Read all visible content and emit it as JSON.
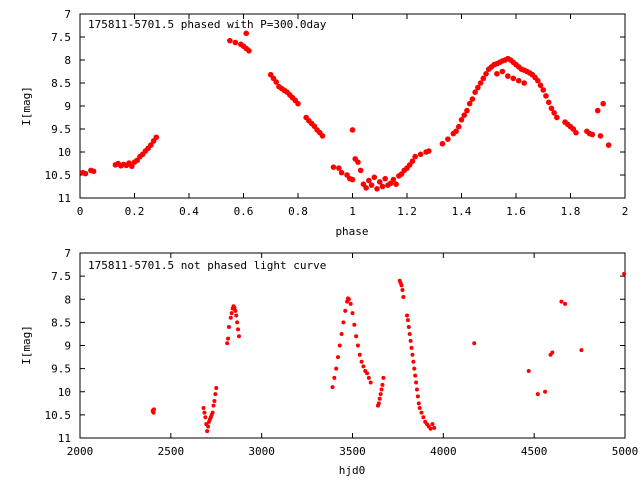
{
  "chart_data": [
    {
      "type": "scatter",
      "title": "175811-5701.5 phased with P=300.0day",
      "xlabel": "phase",
      "ylabel": "I[mag]",
      "xlim": [
        0,
        2
      ],
      "ylim": [
        11,
        7
      ],
      "y_inverted": true,
      "xticks": [
        0,
        0.2,
        0.4,
        0.6,
        0.8,
        1,
        1.2,
        1.4,
        1.6,
        1.8,
        2
      ],
      "xtick_labels": [
        "0",
        "0.2",
        "0.4",
        "0.6",
        "0.8",
        "1",
        "1.2",
        "1.4",
        "1.6",
        "1.8",
        "2"
      ],
      "yticks": [
        7,
        7.5,
        8,
        8.5,
        9,
        9.5,
        10,
        10.5,
        11
      ],
      "ytick_labels": [
        "7",
        "7.5",
        "8",
        "8.5",
        "9",
        "9.5",
        "10",
        "10.5",
        "11"
      ],
      "grid": false,
      "marker_color": "#ff0000",
      "points": [
        [
          0.01,
          10.45
        ],
        [
          0.02,
          10.47
        ],
        [
          0.04,
          10.4
        ],
        [
          0.05,
          10.42
        ],
        [
          0.13,
          10.28
        ],
        [
          0.14,
          10.25
        ],
        [
          0.15,
          10.3
        ],
        [
          0.16,
          10.27
        ],
        [
          0.17,
          10.29
        ],
        [
          0.18,
          10.24
        ],
        [
          0.19,
          10.31
        ],
        [
          0.2,
          10.22
        ],
        [
          0.21,
          10.18
        ],
        [
          0.22,
          10.1
        ],
        [
          0.23,
          10.05
        ],
        [
          0.24,
          9.98
        ],
        [
          0.25,
          9.92
        ],
        [
          0.26,
          9.85
        ],
        [
          0.27,
          9.76
        ],
        [
          0.28,
          9.68
        ],
        [
          0.55,
          7.58
        ],
        [
          0.57,
          7.62
        ],
        [
          0.59,
          7.66
        ],
        [
          0.6,
          7.7
        ],
        [
          0.61,
          7.75
        ],
        [
          0.62,
          7.8
        ],
        [
          0.61,
          7.42
        ],
        [
          0.7,
          8.32
        ],
        [
          0.71,
          8.4
        ],
        [
          0.72,
          8.48
        ],
        [
          0.73,
          8.58
        ],
        [
          0.74,
          8.62
        ],
        [
          0.75,
          8.66
        ],
        [
          0.76,
          8.7
        ],
        [
          0.77,
          8.76
        ],
        [
          0.78,
          8.82
        ],
        [
          0.79,
          8.88
        ],
        [
          0.8,
          8.95
        ],
        [
          0.83,
          9.25
        ],
        [
          0.84,
          9.32
        ],
        [
          0.85,
          9.38
        ],
        [
          0.86,
          9.44
        ],
        [
          0.87,
          9.52
        ],
        [
          0.88,
          9.58
        ],
        [
          0.89,
          9.65
        ],
        [
          0.93,
          10.33
        ],
        [
          0.95,
          10.35
        ],
        [
          0.96,
          10.45
        ],
        [
          0.98,
          10.5
        ],
        [
          0.99,
          10.58
        ],
        [
          1.0,
          10.6
        ],
        [
          1.0,
          9.52
        ],
        [
          1.01,
          10.15
        ],
        [
          1.02,
          10.22
        ],
        [
          1.03,
          10.4
        ],
        [
          1.04,
          10.7
        ],
        [
          1.05,
          10.78
        ],
        [
          1.06,
          10.62
        ],
        [
          1.07,
          10.72
        ],
        [
          1.08,
          10.55
        ],
        [
          1.09,
          10.8
        ],
        [
          1.1,
          10.65
        ],
        [
          1.11,
          10.75
        ],
        [
          1.12,
          10.58
        ],
        [
          1.13,
          10.72
        ],
        [
          1.14,
          10.68
        ],
        [
          1.15,
          10.6
        ],
        [
          1.16,
          10.7
        ],
        [
          1.17,
          10.52
        ],
        [
          1.18,
          10.48
        ],
        [
          1.19,
          10.4
        ],
        [
          1.2,
          10.35
        ],
        [
          1.21,
          10.28
        ],
        [
          1.22,
          10.2
        ],
        [
          1.23,
          10.1
        ],
        [
          1.25,
          10.05
        ],
        [
          1.27,
          10.0
        ],
        [
          1.28,
          9.98
        ],
        [
          1.33,
          9.82
        ],
        [
          1.35,
          9.72
        ],
        [
          1.37,
          9.6
        ],
        [
          1.38,
          9.55
        ],
        [
          1.39,
          9.45
        ],
        [
          1.4,
          9.3
        ],
        [
          1.41,
          9.2
        ],
        [
          1.42,
          9.1
        ],
        [
          1.43,
          8.95
        ],
        [
          1.44,
          8.85
        ],
        [
          1.45,
          8.7
        ],
        [
          1.46,
          8.6
        ],
        [
          1.47,
          8.5
        ],
        [
          1.48,
          8.4
        ],
        [
          1.49,
          8.3
        ],
        [
          1.5,
          8.2
        ],
        [
          1.51,
          8.15
        ],
        [
          1.52,
          8.1
        ],
        [
          1.53,
          8.08
        ],
        [
          1.54,
          8.05
        ],
        [
          1.55,
          8.02
        ],
        [
          1.56,
          8.0
        ],
        [
          1.57,
          7.97
        ],
        [
          1.58,
          8.0
        ],
        [
          1.59,
          8.05
        ],
        [
          1.6,
          8.1
        ],
        [
          1.61,
          8.15
        ],
        [
          1.62,
          8.2
        ],
        [
          1.63,
          8.22
        ],
        [
          1.64,
          8.25
        ],
        [
          1.65,
          8.28
        ],
        [
          1.66,
          8.32
        ],
        [
          1.67,
          8.38
        ],
        [
          1.68,
          8.45
        ],
        [
          1.69,
          8.55
        ],
        [
          1.7,
          8.65
        ],
        [
          1.71,
          8.78
        ],
        [
          1.72,
          8.92
        ],
        [
          1.73,
          9.05
        ],
        [
          1.74,
          9.15
        ],
        [
          1.75,
          9.25
        ],
        [
          1.53,
          8.3
        ],
        [
          1.55,
          8.25
        ],
        [
          1.57,
          8.35
        ],
        [
          1.59,
          8.4
        ],
        [
          1.61,
          8.45
        ],
        [
          1.63,
          8.5
        ],
        [
          1.78,
          9.35
        ],
        [
          1.79,
          9.4
        ],
        [
          1.8,
          9.45
        ],
        [
          1.81,
          9.5
        ],
        [
          1.82,
          9.58
        ],
        [
          1.86,
          9.55
        ],
        [
          1.87,
          9.6
        ],
        [
          1.88,
          9.62
        ],
        [
          1.9,
          9.1
        ],
        [
          1.91,
          9.65
        ],
        [
          1.92,
          8.95
        ],
        [
          1.94,
          9.85
        ]
      ]
    },
    {
      "type": "scatter",
      "title": "175811-5701.5 not phased light curve",
      "xlabel": "hjd0",
      "ylabel": "I[mag]",
      "xlim": [
        2000,
        5000
      ],
      "ylim": [
        11,
        7
      ],
      "y_inverted": true,
      "xticks": [
        2000,
        2500,
        3000,
        3500,
        4000,
        4500,
        5000
      ],
      "xtick_labels": [
        "2000",
        "2500",
        "3000",
        "3500",
        "4000",
        "4500",
        "5000"
      ],
      "yticks": [
        7,
        7.5,
        8,
        8.5,
        9,
        9.5,
        10,
        10.5,
        11
      ],
      "ytick_labels": [
        "7",
        "7.5",
        "8",
        "8.5",
        "9",
        "9.5",
        "10",
        "10.5",
        "11"
      ],
      "grid": false,
      "marker_color": "#ff0000",
      "points": [
        [
          2400,
          10.42
        ],
        [
          2402,
          10.4
        ],
        [
          2405,
          10.45
        ],
        [
          2407,
          10.38
        ],
        [
          2680,
          10.35
        ],
        [
          2685,
          10.45
        ],
        [
          2690,
          10.55
        ],
        [
          2695,
          10.7
        ],
        [
          2700,
          10.85
        ],
        [
          2705,
          10.75
        ],
        [
          2710,
          10.65
        ],
        [
          2715,
          10.6
        ],
        [
          2720,
          10.55
        ],
        [
          2725,
          10.5
        ],
        [
          2730,
          10.45
        ],
        [
          2735,
          10.3
        ],
        [
          2740,
          10.2
        ],
        [
          2745,
          10.05
        ],
        [
          2750,
          9.92
        ],
        [
          2810,
          8.95
        ],
        [
          2815,
          8.85
        ],
        [
          2820,
          8.6
        ],
        [
          2830,
          8.4
        ],
        [
          2835,
          8.3
        ],
        [
          2840,
          8.2
        ],
        [
          2845,
          8.15
        ],
        [
          2850,
          8.18
        ],
        [
          2855,
          8.25
        ],
        [
          2860,
          8.35
        ],
        [
          2865,
          8.5
        ],
        [
          2870,
          8.65
        ],
        [
          2875,
          8.8
        ],
        [
          3390,
          9.9
        ],
        [
          3400,
          9.7
        ],
        [
          3410,
          9.5
        ],
        [
          3420,
          9.25
        ],
        [
          3430,
          9.0
        ],
        [
          3440,
          8.75
        ],
        [
          3450,
          8.5
        ],
        [
          3460,
          8.25
        ],
        [
          3470,
          8.05
        ],
        [
          3475,
          7.98
        ],
        [
          3480,
          8.0
        ],
        [
          3490,
          8.1
        ],
        [
          3500,
          8.3
        ],
        [
          3510,
          8.55
        ],
        [
          3520,
          8.8
        ],
        [
          3530,
          9.0
        ],
        [
          3540,
          9.2
        ],
        [
          3550,
          9.35
        ],
        [
          3560,
          9.45
        ],
        [
          3570,
          9.55
        ],
        [
          3580,
          9.6
        ],
        [
          3590,
          9.7
        ],
        [
          3600,
          9.8
        ],
        [
          3640,
          10.3
        ],
        [
          3645,
          10.25
        ],
        [
          3650,
          10.15
        ],
        [
          3655,
          10.05
        ],
        [
          3660,
          9.95
        ],
        [
          3665,
          9.85
        ],
        [
          3670,
          9.7
        ],
        [
          3760,
          7.6
        ],
        [
          3765,
          7.65
        ],
        [
          3770,
          7.7
        ],
        [
          3775,
          7.8
        ],
        [
          3780,
          7.95
        ],
        [
          3800,
          8.35
        ],
        [
          3805,
          8.45
        ],
        [
          3810,
          8.6
        ],
        [
          3815,
          8.75
        ],
        [
          3820,
          8.9
        ],
        [
          3825,
          9.05
        ],
        [
          3830,
          9.2
        ],
        [
          3835,
          9.35
        ],
        [
          3840,
          9.5
        ],
        [
          3845,
          9.65
        ],
        [
          3850,
          9.8
        ],
        [
          3855,
          9.95
        ],
        [
          3860,
          10.1
        ],
        [
          3865,
          10.25
        ],
        [
          3870,
          10.35
        ],
        [
          3880,
          10.45
        ],
        [
          3890,
          10.55
        ],
        [
          3900,
          10.65
        ],
        [
          3910,
          10.7
        ],
        [
          3920,
          10.75
        ],
        [
          3930,
          10.8
        ],
        [
          3940,
          10.7
        ],
        [
          3950,
          10.78
        ],
        [
          4170,
          8.95
        ],
        [
          4470,
          9.55
        ],
        [
          4520,
          10.05
        ],
        [
          4560,
          10.0
        ],
        [
          4590,
          9.2
        ],
        [
          4600,
          9.15
        ],
        [
          4650,
          8.05
        ],
        [
          4670,
          8.1
        ],
        [
          4760,
          9.1
        ],
        [
          4995,
          7.45
        ]
      ]
    }
  ]
}
